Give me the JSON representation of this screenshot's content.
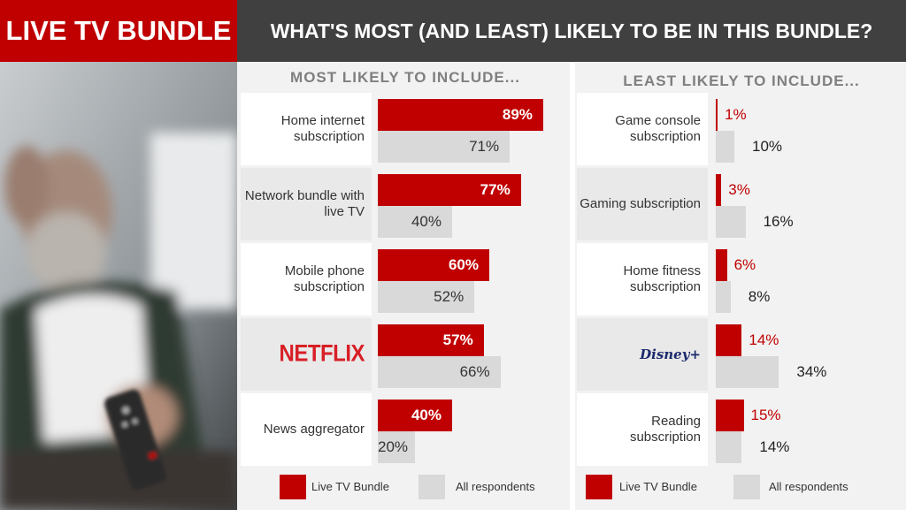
{
  "header": {
    "badge": "LIVE TV BUNDLE",
    "title": "WHAT'S MOST (AND LEAST) LIKELY TO BE IN THIS BUNDLE?"
  },
  "chart_data": [
    {
      "type": "bar",
      "orientation": "horizontal",
      "title": "MOST LIKELY TO INCLUDE...",
      "categories": [
        "Home internet subscription",
        "Network bundle with live TV",
        "Mobile phone subscription",
        "NETFLIX",
        "News aggregator"
      ],
      "series": [
        {
          "name": "Live TV Bundle",
          "color": "#c00000",
          "values": [
            89,
            77,
            60,
            57,
            40
          ],
          "value_labels": [
            "89%",
            "77%",
            "60%",
            "57%",
            "40%"
          ]
        },
        {
          "name": "All respondents",
          "color": "#d9d9d9",
          "values": [
            71,
            40,
            52,
            66,
            20
          ],
          "value_labels": [
            "71%",
            "40%",
            "52%",
            "66%",
            "20%"
          ]
        }
      ]
    },
    {
      "type": "bar",
      "orientation": "horizontal",
      "title": "LEAST LIKELY TO INCLUDE...",
      "categories": [
        "Game console subscription",
        "Gaming subscription",
        "Home fitness subscription",
        "Disney+",
        "Reading subscription"
      ],
      "series": [
        {
          "name": "Live TV Bundle",
          "color": "#c00000",
          "values": [
            1,
            3,
            6,
            14,
            15
          ],
          "value_labels": [
            "1%",
            "3%",
            "6%",
            "14%",
            "15%"
          ]
        },
        {
          "name": "All respondents",
          "color": "#d9d9d9",
          "values": [
            10,
            16,
            8,
            34,
            14
          ],
          "value_labels": [
            "10%",
            "16%",
            "8%",
            "34%",
            "14%"
          ]
        }
      ]
    }
  ]
}
